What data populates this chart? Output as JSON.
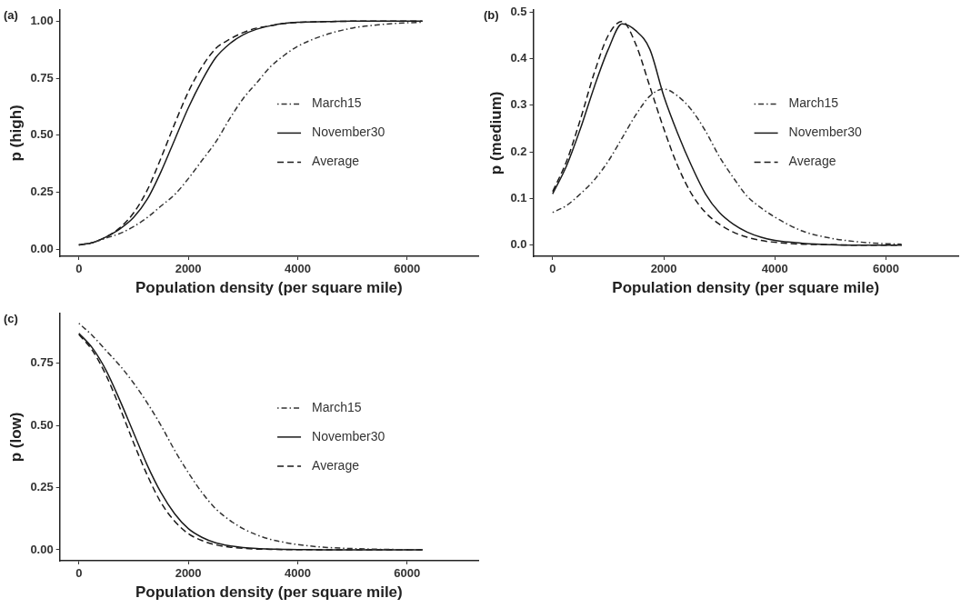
{
  "chart_data": [
    {
      "type": "line",
      "title": "(a)",
      "xlabel": "Population density (per square mile)",
      "ylabel": "p (high)",
      "x": [
        0,
        250,
        500,
        750,
        1000,
        1250,
        1500,
        1750,
        2000,
        2250,
        2500,
        2750,
        3000,
        3250,
        3500,
        3750,
        4000,
        4500,
        5000,
        5500,
        6000,
        6280
      ],
      "xlim": [
        -350,
        7300
      ],
      "xticks": [
        0,
        2000,
        4000,
        6000
      ],
      "ylim": [
        -0.03,
        1.05
      ],
      "yticks": [
        {
          "value": 0,
          "label": "0.00"
        },
        {
          "value": 0.25,
          "label": "0.25"
        },
        {
          "value": 0.5,
          "label": "0.50"
        },
        {
          "value": 0.75,
          "label": "0.75"
        },
        {
          "value": 1,
          "label": "1.00"
        }
      ],
      "grid": false,
      "legend": "right",
      "marker": "none",
      "series": [
        {
          "name": "March15",
          "color": "#333333",
          "line_style": "dotted",
          "values": [
            0.02,
            0.03,
            0.05,
            0.07,
            0.1,
            0.14,
            0.19,
            0.24,
            0.31,
            0.39,
            0.47,
            0.57,
            0.66,
            0.73,
            0.8,
            0.85,
            0.89,
            0.94,
            0.97,
            0.985,
            0.993,
            0.996
          ]
        },
        {
          "name": "November30",
          "color": "#1a1a1a",
          "line_style": "solid",
          "values": [
            0.02,
            0.03,
            0.055,
            0.09,
            0.14,
            0.22,
            0.34,
            0.48,
            0.62,
            0.74,
            0.84,
            0.9,
            0.94,
            0.965,
            0.98,
            0.99,
            0.995,
            0.998,
            1,
            1,
            1,
            1
          ]
        },
        {
          "name": "Average",
          "color": "#1a1a1a",
          "line_style": "dashed",
          "values": [
            0.02,
            0.03,
            0.055,
            0.095,
            0.16,
            0.26,
            0.4,
            0.55,
            0.69,
            0.8,
            0.88,
            0.92,
            0.95,
            0.97,
            0.98,
            0.99,
            0.995,
            0.998,
            1,
            1,
            1,
            1
          ]
        }
      ]
    },
    {
      "type": "line",
      "title": "(b)",
      "xlabel": "Population density (per square mile)",
      "ylabel": "p (medium)",
      "x": [
        0,
        250,
        500,
        750,
        1000,
        1250,
        1500,
        1750,
        2000,
        2250,
        2500,
        2750,
        3000,
        3250,
        3500,
        3750,
        4000,
        4500,
        5000,
        5500,
        6000,
        6280
      ],
      "xlim": [
        -350,
        7300
      ],
      "xticks": [
        0,
        2000,
        4000,
        6000
      ],
      "ylim": [
        -0.024,
        0.505
      ],
      "yticks": [
        {
          "value": 0,
          "label": "0.0"
        },
        {
          "value": 0.1,
          "label": "0.1"
        },
        {
          "value": 0.2,
          "label": "0.2"
        },
        {
          "value": 0.3,
          "label": "0.3"
        },
        {
          "value": 0.4,
          "label": "0.4"
        },
        {
          "value": 0.5,
          "label": "0.5"
        }
      ],
      "grid": false,
      "legend": "right",
      "marker": "none",
      "series": [
        {
          "name": "March15",
          "color": "#333333",
          "line_style": "dotted",
          "values": [
            0.07,
            0.085,
            0.11,
            0.14,
            0.18,
            0.23,
            0.28,
            0.32,
            0.335,
            0.32,
            0.29,
            0.245,
            0.19,
            0.145,
            0.105,
            0.08,
            0.06,
            0.03,
            0.015,
            0.007,
            0.003,
            0.002
          ]
        },
        {
          "name": "November30",
          "color": "#1a1a1a",
          "line_style": "solid",
          "values": [
            0.11,
            0.17,
            0.25,
            0.34,
            0.42,
            0.475,
            0.46,
            0.42,
            0.32,
            0.24,
            0.17,
            0.11,
            0.07,
            0.045,
            0.028,
            0.017,
            0.01,
            0.004,
            0.001,
            0,
            0,
            0
          ]
        },
        {
          "name": "Average",
          "color": "#1a1a1a",
          "line_style": "dashed",
          "values": [
            0.115,
            0.18,
            0.27,
            0.37,
            0.45,
            0.48,
            0.43,
            0.34,
            0.25,
            0.17,
            0.11,
            0.07,
            0.045,
            0.028,
            0.017,
            0.01,
            0.006,
            0.002,
            0.001,
            0,
            0,
            0
          ]
        }
      ]
    },
    {
      "type": "line",
      "title": "(c)",
      "xlabel": "Population density (per square mile)",
      "ylabel": "p (low)",
      "x": [
        0,
        250,
        500,
        750,
        1000,
        1250,
        1500,
        1750,
        2000,
        2250,
        2500,
        2750,
        3000,
        3250,
        3500,
        3750,
        4000,
        4500,
        5000,
        5500,
        6000,
        6280
      ],
      "xlim": [
        -350,
        7300
      ],
      "xticks": [
        0,
        2000,
        4000,
        6000
      ],
      "ylim": [
        -0.044,
        0.95
      ],
      "yticks": [
        {
          "value": 0,
          "label": "0.00"
        },
        {
          "value": 0.25,
          "label": "0.25"
        },
        {
          "value": 0.5,
          "label": "0.50"
        },
        {
          "value": 0.75,
          "label": "0.75"
        }
      ],
      "grid": false,
      "legend": "right",
      "marker": "none",
      "series": [
        {
          "name": "March15",
          "color": "#333333",
          "line_style": "dotted",
          "values": [
            0.91,
            0.86,
            0.8,
            0.74,
            0.67,
            0.59,
            0.5,
            0.4,
            0.31,
            0.23,
            0.165,
            0.12,
            0.085,
            0.06,
            0.042,
            0.03,
            0.021,
            0.01,
            0.005,
            0.002,
            0.001,
            0.001
          ]
        },
        {
          "name": "November30",
          "color": "#1a1a1a",
          "line_style": "solid",
          "values": [
            0.87,
            0.81,
            0.72,
            0.6,
            0.47,
            0.34,
            0.23,
            0.145,
            0.085,
            0.05,
            0.028,
            0.016,
            0.009,
            0.005,
            0.003,
            0.002,
            0.001,
            0,
            0,
            0,
            0,
            0
          ]
        },
        {
          "name": "Average",
          "color": "#1a1a1a",
          "line_style": "dashed",
          "values": [
            0.865,
            0.8,
            0.7,
            0.57,
            0.43,
            0.3,
            0.19,
            0.115,
            0.065,
            0.037,
            0.02,
            0.011,
            0.006,
            0.003,
            0.002,
            0.001,
            0.001,
            0,
            0,
            0,
            0,
            0
          ]
        }
      ]
    }
  ]
}
